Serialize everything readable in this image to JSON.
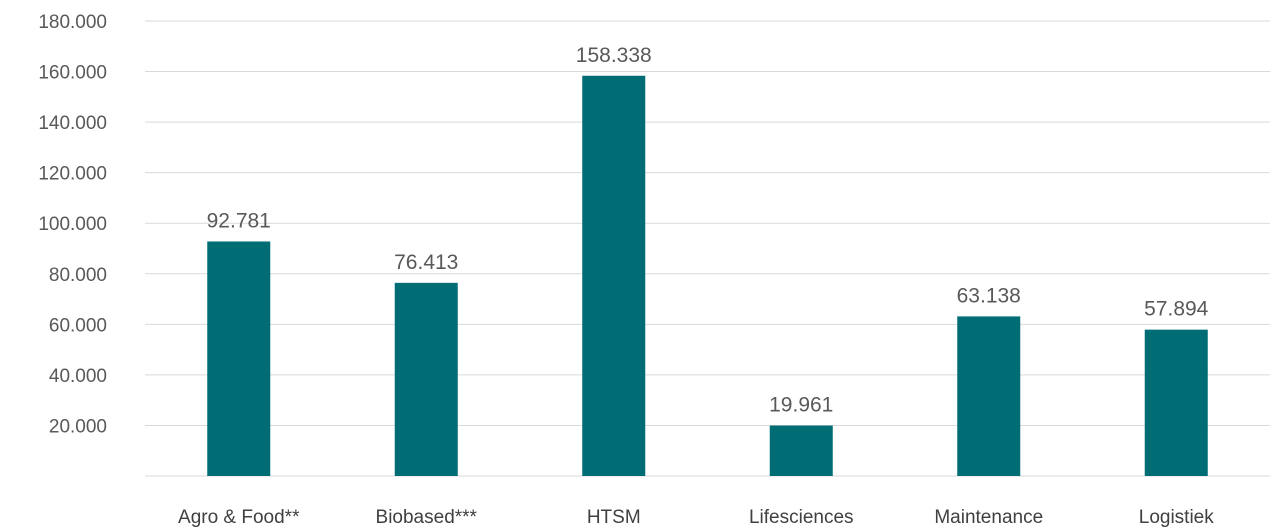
{
  "chart_data": {
    "type": "bar",
    "title": "",
    "xlabel": "",
    "ylabel": "",
    "categories": [
      "Agro & Food**",
      "Biobased***",
      "HTSM",
      "Lifesciences",
      "Maintenance",
      "Logistiek"
    ],
    "values": [
      92781,
      76413,
      158338,
      19961,
      63138,
      57894
    ],
    "value_labels": [
      "92.781",
      "76.413",
      "158.338",
      "19.961",
      "63.138",
      "57.894"
    ],
    "ylim": [
      0,
      180000
    ],
    "yticks": [
      20000,
      40000,
      60000,
      80000,
      100000,
      120000,
      140000,
      160000,
      180000
    ],
    "ytick_labels": [
      "20.000",
      "40.000",
      "60.000",
      "80.000",
      "100.000",
      "120.000",
      "140.000",
      "160.000",
      "180.000"
    ],
    "grid": true,
    "legend": "none",
    "bar_color": "#006d75"
  }
}
